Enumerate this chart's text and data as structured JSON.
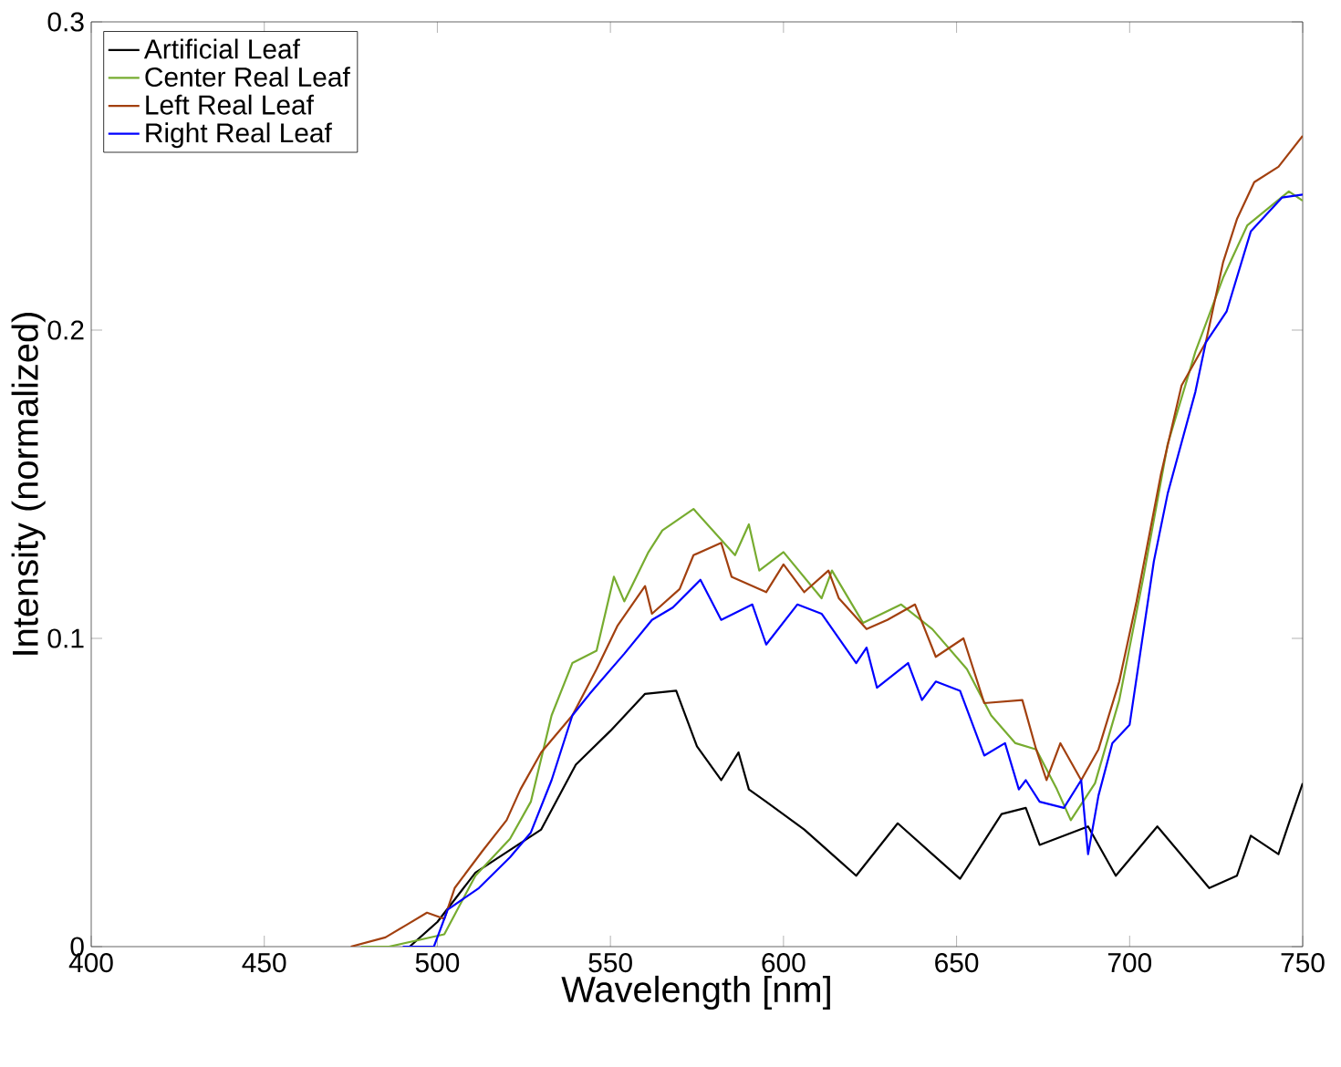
{
  "chart_data": {
    "type": "line",
    "xlabel": "Wavelength [nm]",
    "ylabel": "Intensity (normalized)",
    "xlim": [
      400,
      750
    ],
    "ylim": [
      0,
      0.3
    ],
    "xticks": [
      400,
      450,
      500,
      550,
      600,
      650,
      700,
      750
    ],
    "yticks": [
      0,
      0.1,
      0.2,
      0.3
    ],
    "legend": "top left",
    "series": [
      {
        "name": "Artificial Leaf",
        "color": "#000000",
        "x": [
          492,
          500,
          511,
          530,
          540,
          550,
          560,
          569,
          575,
          582,
          587,
          590,
          595,
          606,
          616,
          621,
          633,
          651,
          663,
          670,
          674,
          688,
          696,
          708,
          723,
          731,
          735,
          743,
          746,
          750
        ],
        "values": [
          0,
          0.008,
          0.024,
          0.038,
          0.059,
          0.07,
          0.082,
          0.083,
          0.065,
          0.054,
          0.063,
          0.051,
          0.047,
          0.038,
          0.028,
          0.023,
          0.04,
          0.022,
          0.043,
          0.045,
          0.033,
          0.039,
          0.023,
          0.039,
          0.019,
          0.023,
          0.036,
          0.03,
          0.04,
          0.053
        ]
      },
      {
        "name": "Center Real Leaf",
        "color": "#77ac30",
        "x": [
          478,
          486,
          502,
          511,
          521,
          527,
          533,
          539,
          546,
          551,
          554,
          561,
          565,
          574,
          586,
          590,
          593,
          600,
          611,
          614,
          623,
          634,
          643,
          653,
          660,
          667,
          673,
          679,
          683,
          690,
          697,
          704,
          711,
          719,
          727,
          734,
          746,
          750
        ],
        "values": [
          0,
          0,
          0.004,
          0.023,
          0.035,
          0.047,
          0.075,
          0.092,
          0.096,
          0.12,
          0.112,
          0.128,
          0.135,
          0.142,
          0.127,
          0.137,
          0.122,
          0.128,
          0.113,
          0.122,
          0.105,
          0.111,
          0.103,
          0.09,
          0.075,
          0.066,
          0.064,
          0.051,
          0.041,
          0.053,
          0.08,
          0.12,
          0.163,
          0.193,
          0.217,
          0.234,
          0.245,
          0.242
        ]
      },
      {
        "name": "Left Real Leaf",
        "color": "#a2400f",
        "x": [
          475,
          485,
          491,
          497,
          502,
          505,
          513,
          520,
          524,
          530,
          539,
          546,
          552,
          560,
          562,
          570,
          574,
          582,
          585,
          595,
          600,
          606,
          613,
          616,
          624,
          630,
          638,
          644,
          652,
          658,
          669,
          673,
          676,
          680,
          686,
          691,
          697,
          702,
          709,
          715,
          722,
          727,
          731,
          736,
          743,
          750
        ],
        "values": [
          0,
          0.003,
          0.007,
          0.011,
          0.009,
          0.019,
          0.031,
          0.041,
          0.051,
          0.063,
          0.075,
          0.09,
          0.104,
          0.117,
          0.108,
          0.116,
          0.127,
          0.131,
          0.12,
          0.115,
          0.124,
          0.115,
          0.122,
          0.113,
          0.103,
          0.106,
          0.111,
          0.094,
          0.1,
          0.079,
          0.08,
          0.064,
          0.054,
          0.066,
          0.054,
          0.064,
          0.086,
          0.112,
          0.153,
          0.182,
          0.196,
          0.222,
          0.236,
          0.248,
          0.253,
          0.263
        ]
      },
      {
        "name": "Right Real Leaf",
        "color": "#0000ff",
        "x": [
          490,
          499,
          503,
          512,
          521,
          527,
          533,
          539,
          544,
          554,
          562,
          568,
          576,
          582,
          591,
          595,
          604,
          611,
          621,
          624,
          627,
          636,
          640,
          644,
          651,
          658,
          664,
          668,
          670,
          674,
          681,
          686,
          688,
          691,
          695,
          700,
          707,
          711,
          719,
          722,
          728,
          735,
          744,
          750
        ],
        "values": [
          0,
          0,
          0.012,
          0.019,
          0.029,
          0.037,
          0.054,
          0.075,
          0.082,
          0.095,
          0.106,
          0.11,
          0.119,
          0.106,
          0.111,
          0.098,
          0.111,
          0.108,
          0.092,
          0.097,
          0.084,
          0.092,
          0.08,
          0.086,
          0.083,
          0.062,
          0.066,
          0.051,
          0.054,
          0.047,
          0.045,
          0.054,
          0.03,
          0.049,
          0.066,
          0.072,
          0.125,
          0.147,
          0.18,
          0.196,
          0.206,
          0.232,
          0.243,
          0.244
        ]
      }
    ]
  }
}
